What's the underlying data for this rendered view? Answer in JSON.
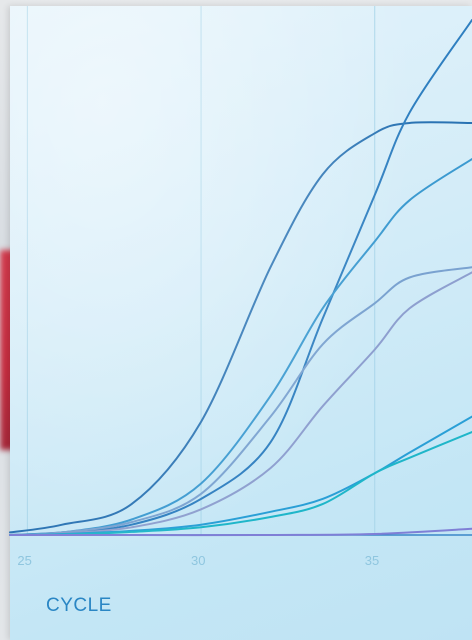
{
  "chart_data": {
    "type": "line",
    "xlabel": "CYCLE",
    "ylabel": "",
    "title": "",
    "x_ticks": [
      25,
      30,
      35
    ],
    "xlim": [
      24.5,
      37.8
    ],
    "ylim": [
      0,
      1
    ],
    "grid": true,
    "series": [
      {
        "color": "#2a73b3",
        "points": [
          [
            24.5,
            0.005
          ],
          [
            26,
            0.02
          ],
          [
            28,
            0.06
          ],
          [
            30,
            0.22
          ],
          [
            32,
            0.52
          ],
          [
            33.5,
            0.7
          ],
          [
            35,
            0.78
          ],
          [
            36,
            0.8
          ],
          [
            37.8,
            0.8
          ]
        ]
      },
      {
        "color": "#2f7fc0",
        "points": [
          [
            24.5,
            0.0
          ],
          [
            26,
            0.005
          ],
          [
            28,
            0.02
          ],
          [
            30,
            0.07
          ],
          [
            32,
            0.18
          ],
          [
            33.5,
            0.42
          ],
          [
            35,
            0.66
          ],
          [
            36,
            0.82
          ],
          [
            37.8,
            1.0
          ]
        ]
      },
      {
        "color": "#3c9ad0",
        "points": [
          [
            24.5,
            0.0
          ],
          [
            26,
            0.005
          ],
          [
            28,
            0.03
          ],
          [
            30,
            0.1
          ],
          [
            32,
            0.27
          ],
          [
            33.5,
            0.44
          ],
          [
            35,
            0.57
          ],
          [
            36,
            0.65
          ],
          [
            37.8,
            0.73
          ]
        ]
      },
      {
        "color": "#7aa2d0",
        "points": [
          [
            24.5,
            0.0
          ],
          [
            26,
            0.005
          ],
          [
            28,
            0.025
          ],
          [
            30,
            0.08
          ],
          [
            32,
            0.23
          ],
          [
            33.5,
            0.37
          ],
          [
            35,
            0.45
          ],
          [
            36,
            0.5
          ],
          [
            37.8,
            0.52
          ]
        ]
      },
      {
        "color": "#8e9fcf",
        "points": [
          [
            24.5,
            0.0
          ],
          [
            26,
            0.003
          ],
          [
            28,
            0.015
          ],
          [
            30,
            0.05
          ],
          [
            32,
            0.13
          ],
          [
            33.5,
            0.25
          ],
          [
            35,
            0.36
          ],
          [
            36,
            0.44
          ],
          [
            37.8,
            0.51
          ]
        ]
      },
      {
        "color": "#2a9fd6",
        "points": [
          [
            24.5,
            0.0
          ],
          [
            26,
            0.002
          ],
          [
            28,
            0.008
          ],
          [
            30,
            0.02
          ],
          [
            32,
            0.045
          ],
          [
            33.5,
            0.07
          ],
          [
            35,
            0.12
          ],
          [
            36,
            0.16
          ],
          [
            37.8,
            0.23
          ]
        ]
      },
      {
        "color": "#1fb6c9",
        "points": [
          [
            24.5,
            0.0
          ],
          [
            26,
            0.001
          ],
          [
            28,
            0.006
          ],
          [
            30,
            0.015
          ],
          [
            32,
            0.035
          ],
          [
            33.5,
            0.06
          ],
          [
            35,
            0.12
          ],
          [
            36,
            0.15
          ],
          [
            37.8,
            0.2
          ]
        ]
      },
      {
        "color": "#7f7fd6",
        "points": [
          [
            24.5,
            0.0
          ],
          [
            28,
            0.0
          ],
          [
            32,
            0.0
          ],
          [
            35,
            0.002
          ],
          [
            37.8,
            0.012
          ]
        ]
      }
    ]
  }
}
